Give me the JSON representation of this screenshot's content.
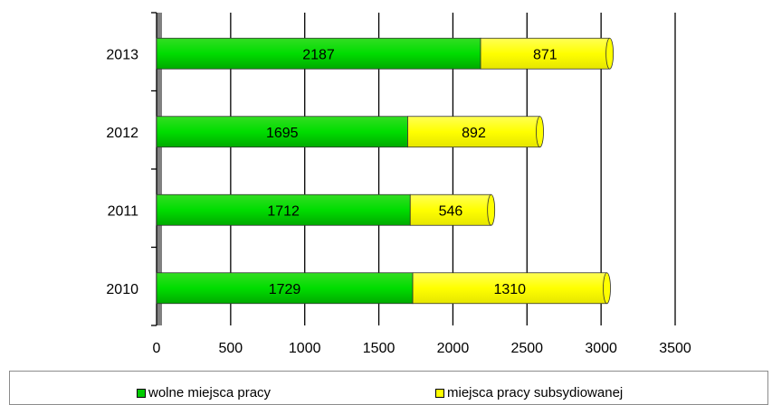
{
  "chart_data": {
    "type": "bar",
    "orientation": "horizontal",
    "stacked": true,
    "categories": [
      "2010",
      "2011",
      "2012",
      "2013"
    ],
    "series": [
      {
        "name": "wolne miejsca pracy",
        "values": [
          1729,
          1712,
          1695,
          2187
        ],
        "color": "#00cc00"
      },
      {
        "name": "miejsca pracy subsydiowanej",
        "values": [
          1310,
          546,
          892,
          871
        ],
        "color": "#ffff00"
      }
    ],
    "xlim": [
      0,
      3500
    ],
    "xticks": [
      0,
      500,
      1000,
      1500,
      2000,
      2500,
      3000,
      3500
    ],
    "grid": true,
    "legend_position": "bottom",
    "title": "",
    "xlabel": "",
    "ylabel": ""
  }
}
